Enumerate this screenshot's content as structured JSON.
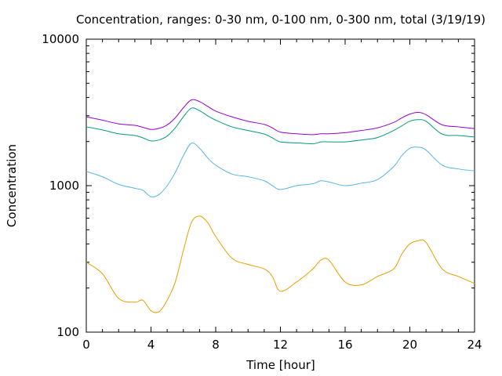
{
  "chart_data": {
    "type": "line",
    "title": "Concentration, ranges: 0-30 nm, 0-100 nm, 0-300 nm, total (3/19/19)",
    "xlabel": "Time [hour]",
    "ylabel": "Concentration",
    "xlim": [
      0,
      24
    ],
    "ylim": [
      100,
      10000
    ],
    "yscale": "log",
    "grid": false,
    "legend": "none",
    "x_ticks": [
      "0",
      "4",
      "8",
      "12",
      "16",
      "20",
      "24"
    ],
    "y_ticks": [
      "100",
      "1000",
      "10000"
    ],
    "x": [
      0,
      1,
      2,
      3,
      3.5,
      4,
      4.5,
      5,
      5.5,
      6,
      6.5,
      7,
      7.5,
      8,
      9,
      10,
      11,
      11.5,
      12,
      13,
      14,
      14.5,
      15,
      16,
      17,
      18,
      19,
      19.5,
      20,
      20.5,
      21,
      22,
      23,
      24
    ],
    "series": [
      {
        "color": "#9400d3",
        "values": [
          2950,
          2800,
          2640,
          2580,
          2500,
          2420,
          2460,
          2600,
          2900,
          3400,
          3850,
          3750,
          3480,
          3230,
          2950,
          2750,
          2620,
          2480,
          2320,
          2260,
          2230,
          2260,
          2260,
          2300,
          2380,
          2480,
          2700,
          2900,
          3080,
          3160,
          3050,
          2600,
          2520,
          2450
        ]
      },
      {
        "color": "#009e73",
        "values": [
          2520,
          2400,
          2260,
          2200,
          2120,
          2020,
          2050,
          2180,
          2480,
          2950,
          3380,
          3250,
          3000,
          2800,
          2520,
          2380,
          2250,
          2120,
          1990,
          1960,
          1930,
          1990,
          1990,
          1990,
          2050,
          2130,
          2380,
          2560,
          2750,
          2820,
          2750,
          2250,
          2200,
          2150
        ]
      },
      {
        "color": "#56b4e9",
        "values": [
          1250,
          1150,
          1020,
          960,
          930,
          840,
          870,
          1000,
          1230,
          1600,
          1950,
          1800,
          1550,
          1380,
          1200,
          1150,
          1080,
          1000,
          940,
          1000,
          1030,
          1080,
          1060,
          1000,
          1040,
          1100,
          1350,
          1600,
          1800,
          1830,
          1750,
          1380,
          1300,
          1260
        ]
      },
      {
        "color": "#e69f00",
        "values": [
          300,
          250,
          170,
          160,
          165,
          140,
          138,
          165,
          220,
          360,
          560,
          620,
          560,
          450,
          320,
          290,
          270,
          240,
          190,
          220,
          270,
          310,
          310,
          220,
          210,
          240,
          270,
          340,
          400,
          420,
          410,
          270,
          240,
          215
        ]
      }
    ]
  }
}
